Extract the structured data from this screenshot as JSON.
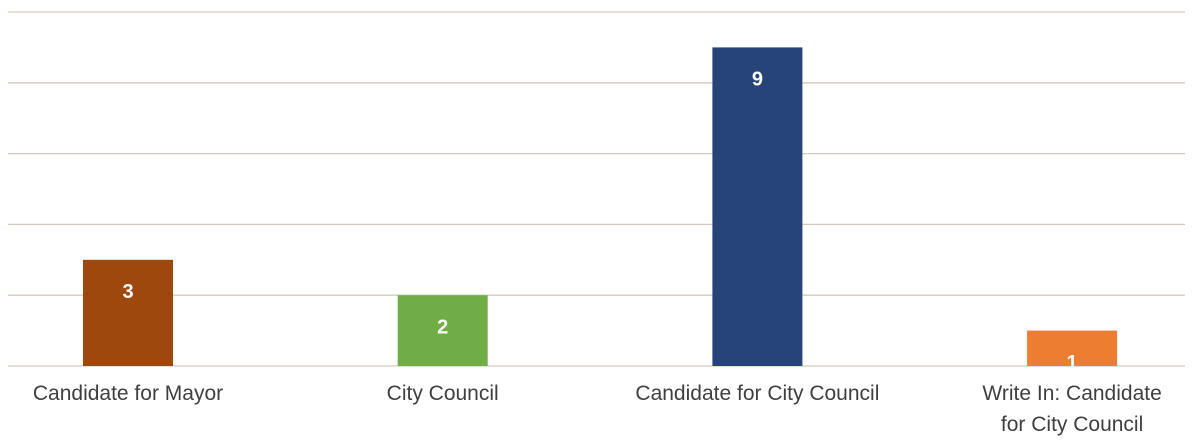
{
  "chart_data": {
    "type": "bar",
    "categories": [
      "Candidate for Mayor",
      "City Council",
      "Candidate for City Council",
      "Write In: Candidate for City Council"
    ],
    "values": [
      3,
      2,
      9,
      1
    ],
    "colors": [
      "#9e480e",
      "#70ad47",
      "#264478",
      "#ed7d31"
    ],
    "ylim": [
      0,
      10
    ],
    "yticks": [
      0,
      2,
      4,
      6,
      8,
      10
    ],
    "grid": true
  }
}
